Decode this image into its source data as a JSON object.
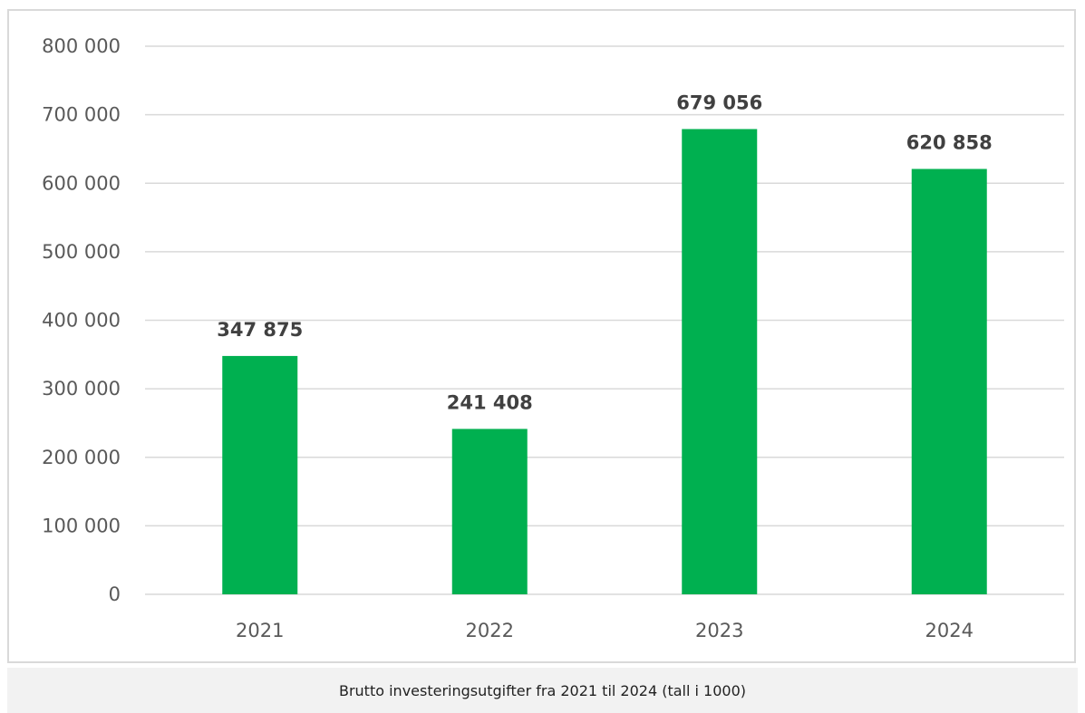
{
  "chart_data": {
    "type": "bar",
    "categories": [
      "2021",
      "2022",
      "2023",
      "2024"
    ],
    "values": [
      347875,
      241408,
      679056,
      620858
    ],
    "data_labels": [
      "347 875",
      "241 408",
      "679 056",
      "620 858"
    ],
    "y_ticks": [
      0,
      100000,
      200000,
      300000,
      400000,
      500000,
      600000,
      700000,
      800000
    ],
    "y_tick_labels": [
      "0",
      "100 000",
      "200 000",
      "300 000",
      "400 000",
      "500 000",
      "600 000",
      "700 000",
      "800 000"
    ],
    "ylim": [
      0,
      800000
    ],
    "grid": true,
    "legend": "none",
    "bar_color": "#00b050",
    "grid_color": "#d9d9d9",
    "title": "",
    "xlabel": "",
    "ylabel": ""
  },
  "caption": "Brutto investeringsutgifter fra 2021 til 2024 (tall i 1000)"
}
